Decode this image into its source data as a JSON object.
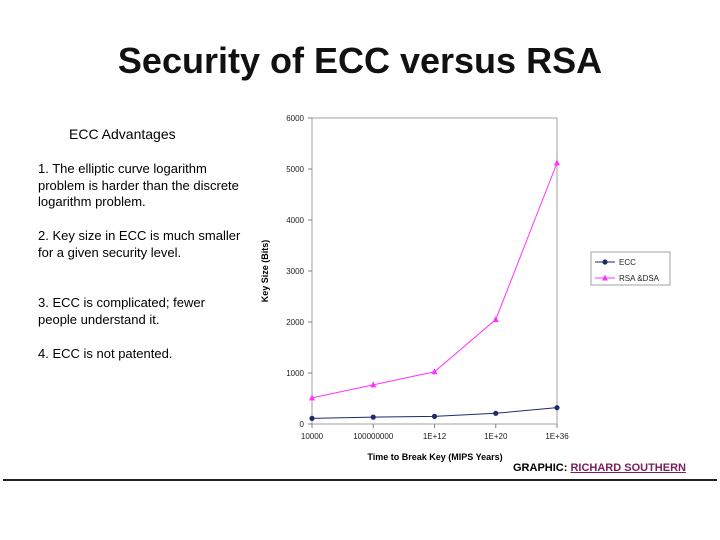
{
  "slide": {
    "title": "Security of ECC versus RSA"
  },
  "advantages": {
    "heading": "ECC Advantages",
    "items": [
      "1.  The elliptic curve logarithm problem is harder than the discrete logarithm problem.",
      "2.  Key size in ECC is much smaller for a given security level.",
      "3.  ECC is complicated; fewer people understand it.",
      "4.  ECC is not patented."
    ]
  },
  "credit": {
    "prefix": "GRAPHIC: ",
    "author": "RICHARD SOUTHERN"
  },
  "chart_data": {
    "type": "line",
    "categories": [
      "10000",
      "100000000",
      "1E+12",
      "1E+20",
      "1E+36"
    ],
    "xlabel": "Time to Break Key (MIPS Years)",
    "ylabel": "Key Size (Bits)",
    "ylim": [
      0,
      6000
    ],
    "yticks": [
      "0",
      "1000",
      "2000",
      "3000",
      "4000",
      "5000",
      "6000"
    ],
    "grid": false,
    "legend": "right",
    "series": [
      {
        "name": "ECC",
        "values": [
          110,
          135,
          150,
          210,
          320
        ],
        "color": "#1f2a6b",
        "marker": "circle"
      },
      {
        "name": "RSA &DSA",
        "values": [
          512,
          768,
          1024,
          2048,
          5120
        ],
        "color": "#ff33ff",
        "marker": "triangle"
      }
    ]
  }
}
